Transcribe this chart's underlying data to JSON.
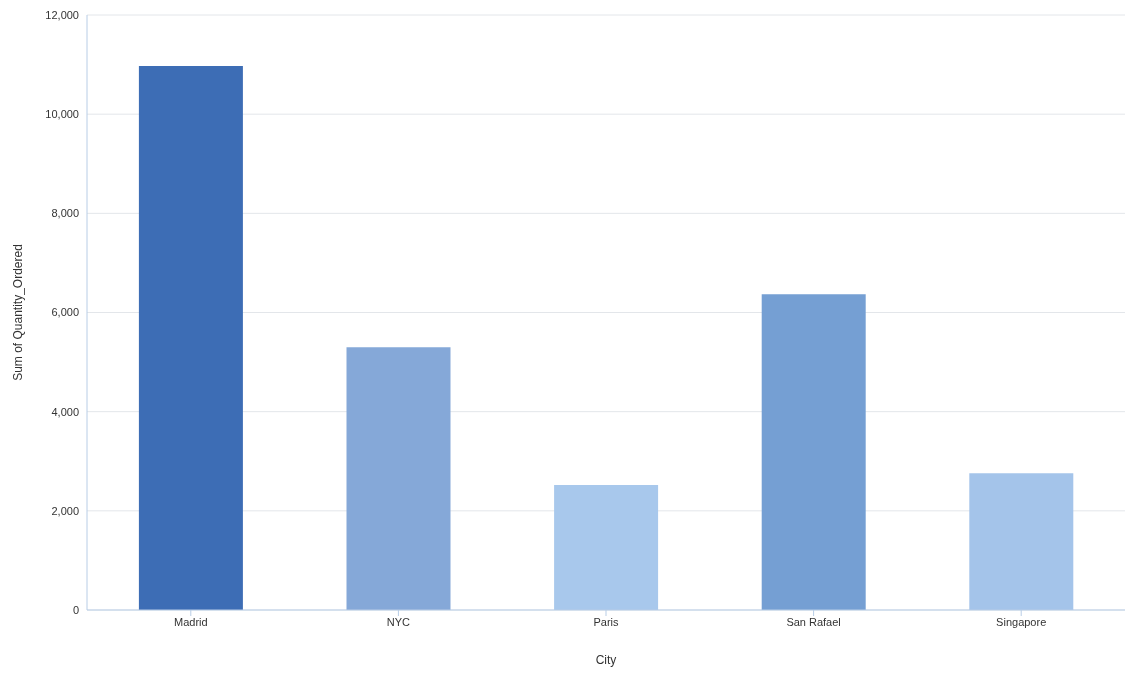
{
  "chart_data": {
    "type": "bar",
    "xlabel": "City",
    "ylabel": "Sum of Quantity_Ordered",
    "categories": [
      "Madrid",
      "NYC",
      "Paris",
      "San Rafael",
      "Singapore"
    ],
    "values": [
      10970,
      5300,
      2520,
      6370,
      2760
    ],
    "colors": [
      "#3d6db5",
      "#85a8d8",
      "#a8c8ec",
      "#759fd3",
      "#a4c4ea"
    ],
    "ylim": [
      0,
      12000
    ],
    "yticks": [
      0,
      {
        "value": 2000,
        "label": "2,000"
      },
      {
        "value": 4000,
        "label": "4,000"
      },
      {
        "value": 6000,
        "label": "6,000"
      },
      {
        "value": 8000,
        "label": "8,000"
      },
      {
        "value": 10000,
        "label": "10,000"
      },
      {
        "value": 12000,
        "label": "12,000"
      }
    ],
    "grid": "y"
  }
}
